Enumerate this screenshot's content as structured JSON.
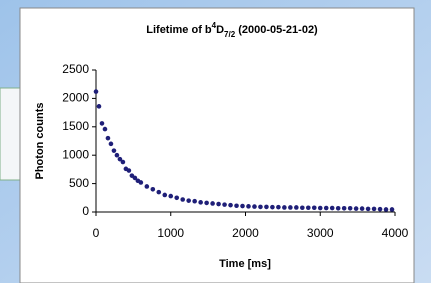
{
  "chart_data": {
    "type": "scatter",
    "title": [
      "Lifetime of b",
      "4",
      "D",
      "7/2",
      " (2000-05-21-02)"
    ],
    "x_label": "Time [ms]",
    "y_label": "Photon counts",
    "x": [
      0,
      40,
      80,
      120,
      160,
      200,
      240,
      280,
      320,
      360,
      400,
      440,
      480,
      520,
      560,
      600,
      680,
      760,
      840,
      920,
      1000,
      1080,
      1160,
      1240,
      1320,
      1400,
      1480,
      1560,
      1640,
      1720,
      1800,
      1880,
      1960,
      2040,
      2120,
      2200,
      2280,
      2360,
      2440,
      2520,
      2600,
      2680,
      2760,
      2840,
      2920,
      3000,
      3080,
      3160,
      3240,
      3320,
      3400,
      3480,
      3560,
      3640,
      3720,
      3800,
      3880,
      3960
    ],
    "values": [
      2120,
      1860,
      1560,
      1460,
      1300,
      1200,
      1080,
      1000,
      930,
      880,
      760,
      730,
      640,
      600,
      550,
      520,
      450,
      400,
      350,
      300,
      280,
      250,
      220,
      200,
      190,
      170,
      160,
      150,
      140,
      130,
      120,
      110,
      105,
      100,
      95,
      90,
      90,
      85,
      85,
      80,
      80,
      80,
      75,
      75,
      75,
      70,
      70,
      70,
      65,
      65,
      65,
      60,
      60,
      55,
      55,
      50,
      45,
      45
    ],
    "color": "#1f1f78",
    "xlim": [
      0,
      4000
    ],
    "xticks": [
      0,
      1000,
      2000,
      3000,
      4000
    ],
    "ylim": [
      0,
      2500
    ],
    "yticks": [
      0,
      500,
      1000,
      1500,
      2000,
      2500
    ],
    "grid": false
  }
}
